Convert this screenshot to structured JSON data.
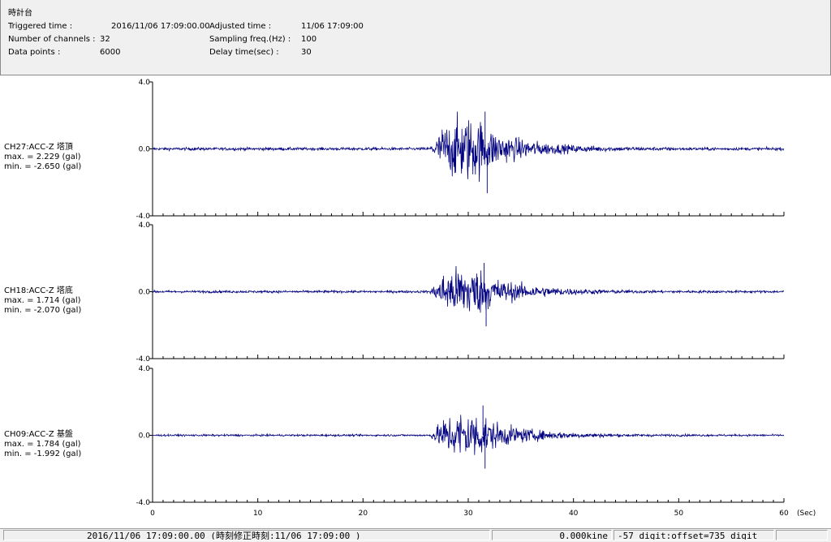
{
  "header": {
    "station": "時計台",
    "fields": [
      {
        "label": "Triggered time :",
        "value": "2016/11/06 17:09:00.00"
      },
      {
        "label": "Number of channels :",
        "value": "32"
      },
      {
        "label": "Data points :",
        "value": "6000"
      },
      {
        "label": "Adjusted time :",
        "value": "11/06 17:09:00"
      },
      {
        "label": "Sampling freq.(Hz) :",
        "value": "100"
      },
      {
        "label": "Delay time(sec) :",
        "value": "30"
      }
    ]
  },
  "chart_data": {
    "type": "line",
    "xlabel": "(Sec)",
    "xlim": [
      0,
      60
    ],
    "x_ticks": [
      0,
      10,
      20,
      30,
      40,
      50,
      60
    ],
    "line_color": "#000080",
    "channels": [
      {
        "name": "CH27:ACC-Z 塔頂",
        "max": "max. = 2.229 (gal)",
        "min": "min. = -2.650 (gal)",
        "ylim": [
          -4.0,
          4.0
        ],
        "y_ticks": [
          "4.0",
          "0.0",
          "-4.0"
        ],
        "peak_max": 2.229,
        "peak_min": -2.65,
        "onset_sec": 26.3,
        "noise_level": 0.06
      },
      {
        "name": "CH18:ACC-Z 塔底",
        "max": "max. = 1.714 (gal)",
        "min": "min. = -2.070 (gal)",
        "ylim": [
          -4.0,
          4.0
        ],
        "y_ticks": [
          "4.0",
          "0.0",
          "-4.0"
        ],
        "peak_max": 1.714,
        "peak_min": -2.07,
        "onset_sec": 26.3,
        "noise_level": 0.05
      },
      {
        "name": "CH09:ACC-Z 基盤",
        "max": "max. = 1.784 (gal)",
        "min": "min. = -1.992 (gal)",
        "ylim": [
          -4.0,
          4.0
        ],
        "y_ticks": [
          "4.0",
          "0.0",
          "-4.0"
        ],
        "peak_max": 1.784,
        "peak_min": -1.992,
        "onset_sec": 26.3,
        "noise_level": 0.04
      }
    ]
  },
  "statusbar": {
    "time": "2016/11/06 17:09:00.00  (時刻修正時刻:11/06 17:09:00  )",
    "velocity": "0.000kine",
    "digit": "-57 digit:offset=735 digit"
  }
}
